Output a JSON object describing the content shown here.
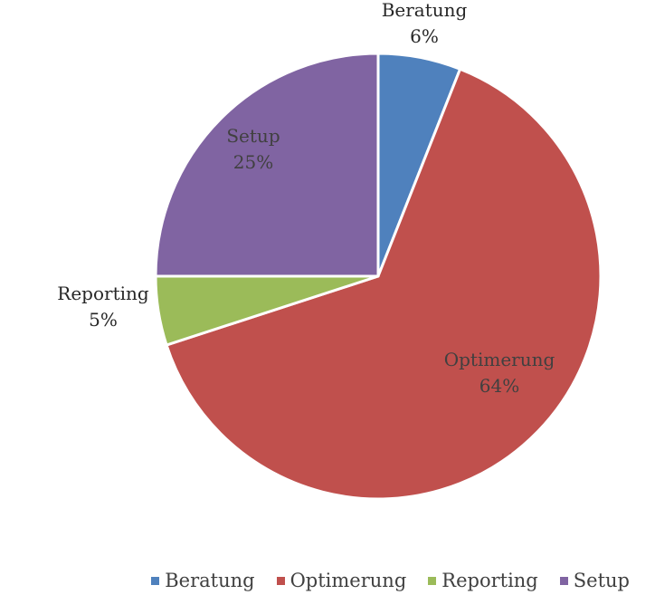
{
  "chart_data": {
    "type": "pie",
    "title": "",
    "series": [
      {
        "name": "Beratung",
        "value": 6,
        "label": "6%",
        "color": "#4f81bd",
        "label_color": "#262626"
      },
      {
        "name": "Optimerung",
        "value": 64,
        "label": "64%",
        "color": "#c0504d",
        "label_color": "#404040"
      },
      {
        "name": "Reporting",
        "value": 5,
        "label": "5%",
        "color": "#9bbb59",
        "label_color": "#262626"
      },
      {
        "name": "Setup",
        "value": 25,
        "label": "25%",
        "color": "#8064a2",
        "label_color": "#404040"
      }
    ],
    "legend": {
      "position": "bottom-right",
      "entries": [
        "Beratung",
        "Optimerung",
        "Reporting",
        "Setup"
      ]
    },
    "data_labels": "category and percentage"
  }
}
